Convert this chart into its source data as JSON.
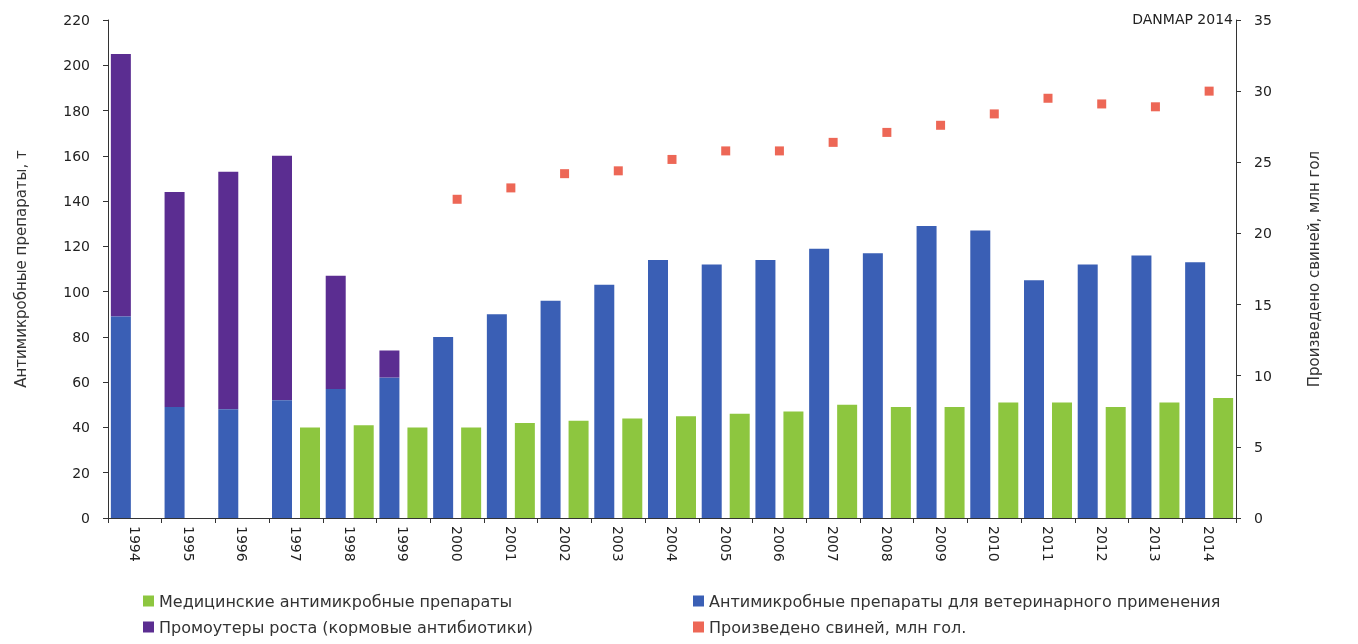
{
  "chart_data": {
    "type": "bar",
    "ylabel": "Антимикробные препараты, т",
    "y2label": "Произведено свиней, млн гол",
    "annotations": [
      "DANMAP 2014"
    ],
    "categories": [
      "1994",
      "1995",
      "1996",
      "1997",
      "1998",
      "1999",
      "2000",
      "2001",
      "2002",
      "2003",
      "2004",
      "2005",
      "2006",
      "2007",
      "2008",
      "2009",
      "2010",
      "2011",
      "2012",
      "2013",
      "2014"
    ],
    "series": [
      {
        "name": "Антимикробные препараты для ветеринарного применения",
        "color": "#3a5fb5",
        "values": [
          89,
          49,
          48,
          52,
          57,
          62,
          80,
          90,
          96,
          103,
          114,
          112,
          114,
          119,
          117,
          129,
          127,
          105,
          112,
          116,
          113
        ]
      },
      {
        "name": "Промоутеры роста (кормовые антибиотики)",
        "color": "#5b2d91",
        "base": [
          89,
          49,
          48,
          52,
          57,
          62,
          null,
          null,
          null,
          null,
          null,
          null,
          null,
          null,
          null,
          null,
          null,
          null,
          null,
          null,
          null
        ],
        "values": [
          116,
          95,
          105,
          108,
          50,
          12,
          null,
          null,
          null,
          null,
          null,
          null,
          null,
          null,
          null,
          null,
          null,
          null,
          null,
          null,
          null
        ]
      },
      {
        "name": "Медицинские антимикробные препараты",
        "color": "#8dc63f",
        "values": [
          null,
          null,
          null,
          40,
          41,
          40,
          40,
          42,
          43,
          44,
          45,
          46,
          47,
          50,
          49,
          49,
          51,
          51,
          49,
          51,
          53
        ]
      },
      {
        "name": "Произведено свиней, млн гол.",
        "type": "scatter",
        "axis": "y2",
        "marker": "square",
        "color": "#e8412c",
        "values": [
          null,
          null,
          null,
          null,
          null,
          null,
          22.4,
          23.2,
          24.2,
          24.4,
          25.2,
          25.8,
          25.8,
          26.4,
          27.1,
          27.6,
          28.4,
          29.5,
          29.1,
          28.9,
          30.0
        ]
      }
    ],
    "ylim": [
      0,
      220
    ],
    "yticks": [
      0,
      20,
      40,
      60,
      80,
      100,
      120,
      140,
      160,
      180,
      200,
      220
    ],
    "y2lim": [
      0,
      35
    ],
    "y2ticks": [
      0,
      5,
      10,
      15,
      20,
      25,
      30,
      35
    ],
    "grid": false,
    "legend": "bottom"
  }
}
